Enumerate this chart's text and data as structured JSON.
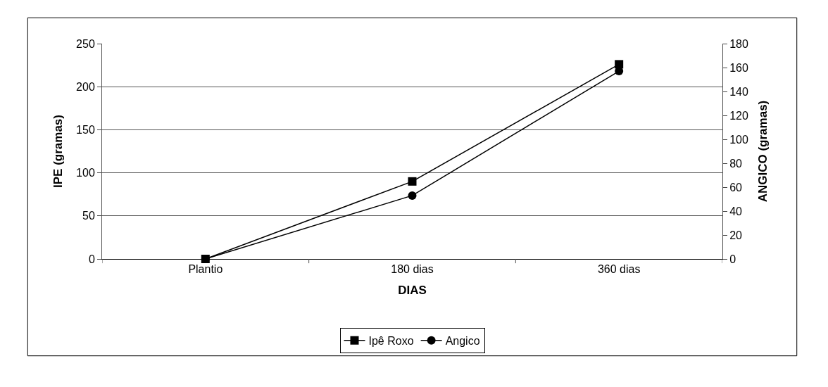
{
  "chart_data": {
    "type": "line",
    "xlabel": "DIAS",
    "ylabel": "IPE (gramas)",
    "y2label": "ANGICO (gramas)",
    "categories": [
      "Plantio",
      "180 dias",
      "360 dias"
    ],
    "series": [
      {
        "name": "Ipê Roxo",
        "color": "#000000",
        "values": [
          0,
          90,
          226
        ],
        "marker": "square"
      },
      {
        "name": "Angico",
        "color": "#000000",
        "values": [
          0,
          53,
          157
        ],
        "marker": "circle",
        "axis": "y2"
      }
    ],
    "ylim": [
      0,
      250
    ],
    "yticks": [
      0,
      50,
      100,
      150,
      200,
      250
    ],
    "y2lim": [
      0,
      180
    ],
    "y2ticks": [
      0,
      20,
      40,
      60,
      80,
      100,
      120,
      140,
      160,
      180
    ],
    "grid": "y",
    "legend": "bottom",
    "line_style": "solid"
  }
}
